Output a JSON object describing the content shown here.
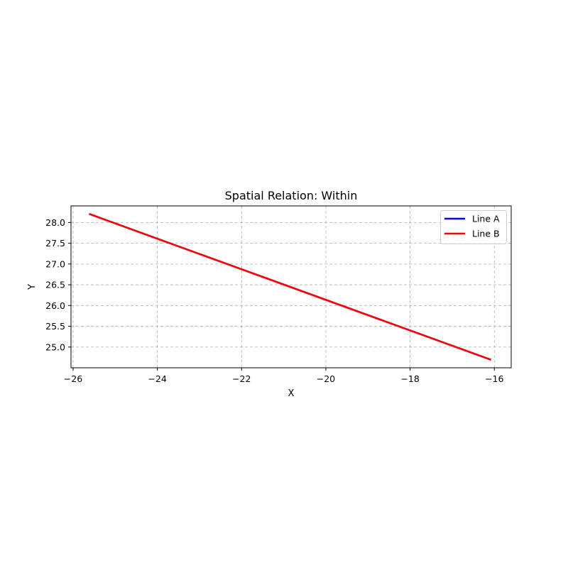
{
  "chart_data": {
    "type": "line",
    "title": "Spatial Relation: Within",
    "xlabel": "X",
    "ylabel": "Y",
    "xlim": [
      -26.05,
      -15.6
    ],
    "ylim": [
      24.5,
      28.4
    ],
    "xticks": [
      -26,
      -24,
      -22,
      -20,
      -18,
      -16
    ],
    "yticks": [
      25.0,
      25.5,
      26.0,
      26.5,
      27.0,
      27.5,
      28.0
    ],
    "xtick_labels": [
      "−26",
      "−24",
      "−22",
      "−20",
      "−18",
      "−16"
    ],
    "ytick_labels": [
      "25.0",
      "25.5",
      "26.0",
      "26.5",
      "27.0",
      "27.5",
      "28.0"
    ],
    "grid": true,
    "grid_style": "dashed",
    "legend_position": "top-right",
    "series": [
      {
        "name": "Line A",
        "color": "#0000ff",
        "x": [
          -25.6,
          -16.1
        ],
        "y": [
          28.2,
          24.7
        ]
      },
      {
        "name": "Line B",
        "color": "#ff0000",
        "x": [
          -25.6,
          -16.1
        ],
        "y": [
          28.2,
          24.7
        ]
      }
    ]
  }
}
